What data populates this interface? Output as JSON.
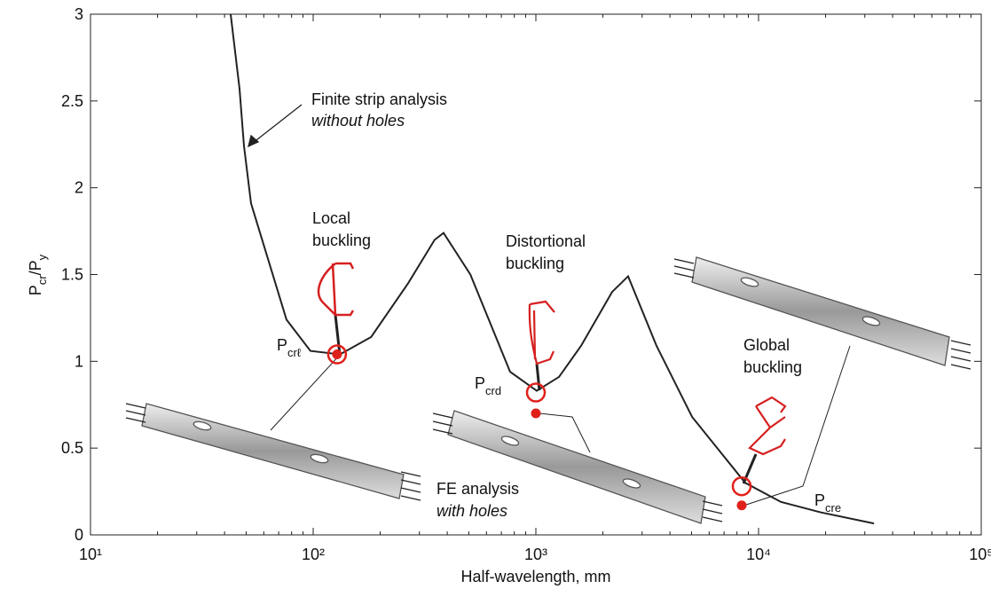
{
  "chart_data": {
    "type": "line",
    "xlabel": "Half-wavelength, mm",
    "ylabel": {
      "parts": [
        "P",
        "cr",
        "/P",
        "y"
      ]
    },
    "xscale": "log",
    "xlim": [
      10,
      100000
    ],
    "ylim": [
      0,
      3
    ],
    "xticks": [
      {
        "value": 10,
        "label": "10¹"
      },
      {
        "value": 100,
        "label": "10²"
      },
      {
        "value": 1000,
        "label": "10³"
      },
      {
        "value": 10000,
        "label": "10⁴"
      },
      {
        "value": 100000,
        "label": "10⁵"
      }
    ],
    "yticks": [
      0,
      0.5,
      1,
      1.5,
      2,
      2.5,
      3
    ],
    "x": [
      42.6,
      46.7,
      48.9,
      52.6,
      75.9,
      97.2,
      132,
      182,
      267,
      351,
      385,
      508,
      766,
      1009,
      1270,
      1597,
      2200,
      2596,
      3480,
      5030,
      8710,
      12600,
      19000,
      33000
    ],
    "series": [
      {
        "color": "#222222",
        "values": [
          3,
          2.57,
          2.24,
          1.91,
          1.24,
          1.06,
          1.04,
          1.14,
          1.45,
          1.7,
          1.74,
          1.5,
          0.94,
          0.83,
          0.91,
          1.09,
          1.4,
          1.49,
          1.09,
          0.68,
          0.3,
          0.19,
          0.13,
          0.066
        ]
      }
    ],
    "marker_color": "#e0201b",
    "critical_points": [
      {
        "x": 128,
        "y": 1.04
      },
      {
        "x": 1000,
        "y": 0.82
      },
      {
        "x": 8400,
        "y": 0.28
      }
    ],
    "fe_points": [
      {
        "x": 128,
        "y": 1.04
      },
      {
        "x": 1000,
        "y": 0.7
      },
      {
        "x": 8400,
        "y": 0.17
      }
    ],
    "annotations": {
      "fsa": [
        "Finite strip analysis",
        "without holes"
      ],
      "local": [
        "Local",
        "buckling"
      ],
      "distortional": [
        "Distortional",
        "buckling"
      ],
      "global": [
        "Global",
        "buckling"
      ],
      "fe": [
        "FE analysis",
        "with holes"
      ],
      "pcrl": {
        "main": "P",
        "sub": "crℓ"
      },
      "pcrd": {
        "main": "P",
        "sub": "crd"
      },
      "pcre": {
        "main": "P",
        "sub": "cre"
      }
    }
  }
}
